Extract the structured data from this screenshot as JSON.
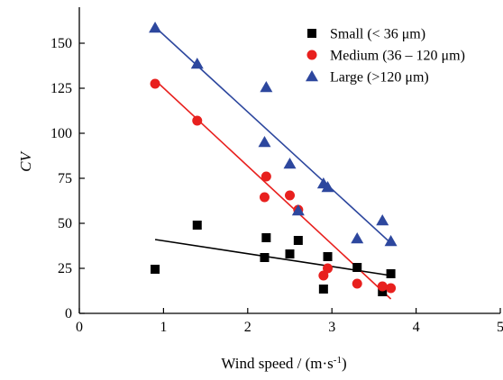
{
  "chart_data": {
    "type": "scatter",
    "xlabel": "Wind speed / (m·s",
    "xlabel_sup": "-1",
    "xlabel_suffix": ")",
    "ylabel": "CV",
    "xlim": [
      0,
      5
    ],
    "ylim": [
      0,
      170
    ],
    "x_ticks": [
      0,
      1,
      2,
      3,
      4,
      5
    ],
    "y_ticks": [
      0,
      25,
      50,
      75,
      100,
      125,
      150
    ],
    "grid": false,
    "legend_position": "top-right",
    "series": [
      {
        "name": "Small (< 36 μm)",
        "marker": "square",
        "color": "#000000",
        "points": [
          [
            0.9,
            24.5
          ],
          [
            1.4,
            49
          ],
          [
            2.2,
            31
          ],
          [
            2.22,
            42
          ],
          [
            2.5,
            33
          ],
          [
            2.6,
            40.5
          ],
          [
            2.9,
            13.5
          ],
          [
            2.95,
            31.5
          ],
          [
            3.3,
            25.5
          ],
          [
            3.6,
            12
          ],
          [
            3.7,
            22
          ]
        ],
        "fit": [
          [
            0.9,
            41
          ],
          [
            3.7,
            21
          ]
        ]
      },
      {
        "name": "Medium (36 – 120 μm)",
        "marker": "circle",
        "color": "#e8201e",
        "points": [
          [
            0.9,
            127.5
          ],
          [
            1.4,
            107
          ],
          [
            2.2,
            64.5
          ],
          [
            2.22,
            76
          ],
          [
            2.5,
            65.5
          ],
          [
            2.6,
            57.5
          ],
          [
            2.9,
            21
          ],
          [
            2.95,
            25
          ],
          [
            3.3,
            16.5
          ],
          [
            3.6,
            15
          ],
          [
            3.7,
            14
          ]
        ],
        "fit": [
          [
            0.9,
            129.5
          ],
          [
            3.7,
            8
          ]
        ]
      },
      {
        "name": "Large (>120 μm)",
        "marker": "triangle",
        "color": "#2d479e",
        "points": [
          [
            0.9,
            158.5
          ],
          [
            1.4,
            138.5
          ],
          [
            2.2,
            95
          ],
          [
            2.22,
            125.5
          ],
          [
            2.5,
            83
          ],
          [
            2.6,
            57
          ],
          [
            2.9,
            72
          ],
          [
            2.95,
            70
          ],
          [
            3.3,
            41.5
          ],
          [
            3.6,
            51.5
          ],
          [
            3.7,
            40
          ]
        ],
        "fit": [
          [
            0.9,
            159
          ],
          [
            3.7,
            39
          ]
        ]
      }
    ]
  }
}
